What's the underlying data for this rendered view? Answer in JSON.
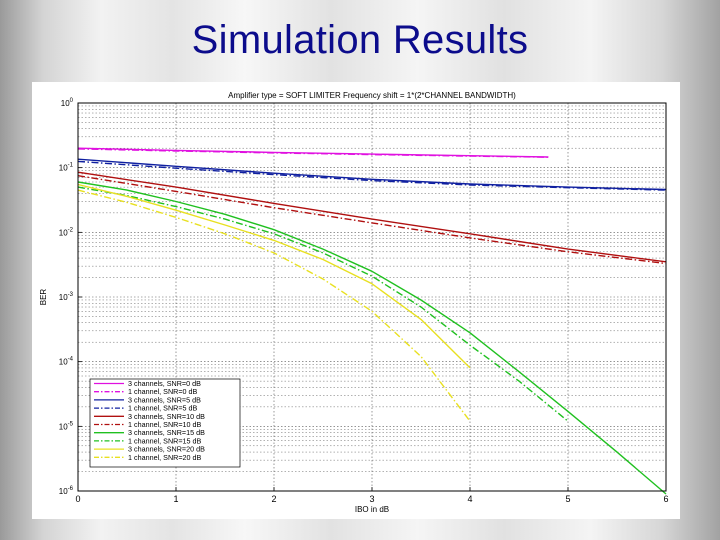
{
  "slide": {
    "title": "Simulation Results"
  },
  "chart_data": {
    "type": "line",
    "title": "Amplifier type = SOFT LIMITER   Frequency shift = 1*(2*CHANNEL BANDWIDTH)",
    "xlabel": "IBO in dB",
    "ylabel": "BER",
    "xlim": [
      0,
      6
    ],
    "ylim": [
      1e-06,
      1
    ],
    "yscale": "log",
    "grid": true,
    "x_ticks": [
      "0",
      "1",
      "2",
      "3",
      "4",
      "5",
      "6"
    ],
    "y_ticks": [
      {
        "base": "10",
        "exp": "0"
      },
      {
        "base": "10",
        "exp": "-1"
      },
      {
        "base": "10",
        "exp": "-2"
      },
      {
        "base": "10",
        "exp": "-3"
      },
      {
        "base": "10",
        "exp": "-4"
      },
      {
        "base": "10",
        "exp": "-5"
      },
      {
        "base": "10",
        "exp": "-6"
      }
    ],
    "legend_position": "bottom-left",
    "series": [
      {
        "name": "3 channels, SNR=0 dB",
        "color": "#e010e0",
        "style": "solid",
        "x": [
          0,
          1,
          2,
          3,
          4,
          4.8
        ],
        "y": [
          0.2,
          0.185,
          0.172,
          0.162,
          0.153,
          0.146
        ]
      },
      {
        "name": "1 channel, SNR=0 dB",
        "color": "#e010e0",
        "style": "dashdot",
        "x": [
          0,
          1,
          2,
          3,
          4,
          4.8
        ],
        "y": [
          0.195,
          0.181,
          0.169,
          0.159,
          0.151,
          0.145
        ]
      },
      {
        "name": "3 channels, SNR=5 dB",
        "color": "#1020a0",
        "style": "solid",
        "x": [
          0,
          1,
          2,
          3,
          4,
          5,
          6
        ],
        "y": [
          0.135,
          0.105,
          0.082,
          0.066,
          0.056,
          0.05,
          0.046
        ]
      },
      {
        "name": "1 channel, SNR=5 dB",
        "color": "#1020a0",
        "style": "dashdot",
        "x": [
          0,
          1,
          2,
          3,
          4,
          5,
          6
        ],
        "y": [
          0.125,
          0.098,
          0.078,
          0.063,
          0.054,
          0.049,
          0.045
        ]
      },
      {
        "name": "3 channels, SNR=10 dB",
        "color": "#b01010",
        "style": "solid",
        "x": [
          0,
          1,
          2,
          3,
          4,
          5,
          6
        ],
        "y": [
          0.085,
          0.05,
          0.028,
          0.016,
          0.0095,
          0.0055,
          0.0035
        ]
      },
      {
        "name": "1 channel, SNR=10 dB",
        "color": "#b01010",
        "style": "dashdot",
        "x": [
          0,
          1,
          2,
          3,
          4,
          5,
          6
        ],
        "y": [
          0.075,
          0.043,
          0.024,
          0.014,
          0.0082,
          0.005,
          0.0033
        ]
      },
      {
        "name": "3 channels, SNR=15 dB",
        "color": "#20c020",
        "style": "solid",
        "x": [
          0,
          0.5,
          1,
          1.5,
          2,
          2.5,
          3,
          3.5,
          4,
          4.5,
          5,
          5.5,
          6
        ],
        "y": [
          0.06,
          0.045,
          0.03,
          0.019,
          0.011,
          0.0055,
          0.0025,
          0.0009,
          0.00028,
          7e-05,
          1.7e-05,
          4e-06,
          9e-07
        ]
      },
      {
        "name": "1 channel, SNR=15 dB",
        "color": "#20c020",
        "style": "dashdot",
        "x": [
          0,
          0.5,
          1,
          1.5,
          2,
          2.5,
          3,
          3.5,
          4,
          4.5,
          5
        ],
        "y": [
          0.05,
          0.037,
          0.025,
          0.016,
          0.0095,
          0.0048,
          0.0021,
          0.0007,
          0.00018,
          5e-05,
          1.2e-05
        ]
      },
      {
        "name": "3 channels, SNR=20 dB",
        "color": "#e8e020",
        "style": "solid",
        "x": [
          0,
          0.5,
          1,
          1.5,
          2,
          2.5,
          3,
          3.5,
          4
        ],
        "y": [
          0.055,
          0.036,
          0.022,
          0.013,
          0.0075,
          0.0038,
          0.0016,
          0.00045,
          8e-05
        ]
      },
      {
        "name": "1 channel, SNR=20 dB",
        "color": "#e8e020",
        "style": "dashdot",
        "x": [
          0,
          0.5,
          1,
          1.5,
          2,
          2.5,
          3,
          3.5,
          4
        ],
        "y": [
          0.045,
          0.029,
          0.017,
          0.0095,
          0.0048,
          0.0019,
          0.0006,
          0.00012,
          1.2e-05
        ]
      }
    ]
  }
}
